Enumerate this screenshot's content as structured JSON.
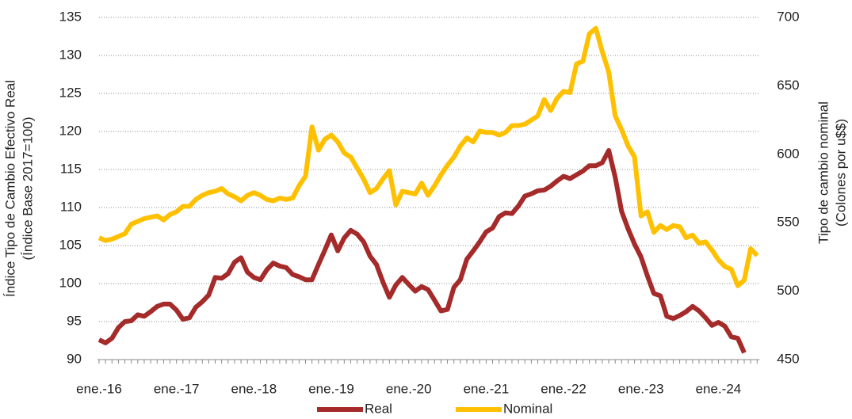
{
  "chart_data": {
    "type": "line",
    "y_label": [
      "Índice Tipo de Cambio Efectivo Real",
      "(Índice Base 2017=100)"
    ],
    "y2_label": [
      "Tipo de cambio nominal",
      "(Colones por u$$)"
    ],
    "categories": [
      "ene.-16",
      null,
      null,
      null,
      null,
      null,
      null,
      null,
      null,
      null,
      null,
      null,
      "ene.-17",
      null,
      null,
      null,
      null,
      null,
      null,
      null,
      null,
      null,
      null,
      null,
      "ene.-18",
      null,
      null,
      null,
      null,
      null,
      null,
      null,
      null,
      null,
      null,
      null,
      "ene.-19",
      null,
      null,
      null,
      null,
      null,
      null,
      null,
      null,
      null,
      null,
      null,
      "ene.-20",
      null,
      null,
      null,
      null,
      null,
      null,
      null,
      null,
      null,
      null,
      null,
      "ene.-21",
      null,
      null,
      null,
      null,
      null,
      null,
      null,
      null,
      null,
      null,
      null,
      "ene.-22",
      null,
      null,
      null,
      null,
      null,
      null,
      null,
      null,
      null,
      null,
      null,
      "ene.-23",
      null,
      null,
      null,
      null,
      null,
      null,
      null,
      null,
      null,
      null,
      null,
      "ene.-24",
      null,
      null,
      null,
      null,
      null,
      null
    ],
    "series": [
      {
        "name": "Real",
        "color": "#a52a2a",
        "axis": "y",
        "values": [
          92.6,
          92.2,
          92.8,
          94.2,
          95.0,
          95.1,
          95.9,
          95.7,
          96.3,
          97.0,
          97.3,
          97.3,
          96.5,
          95.3,
          95.5,
          96.9,
          97.6,
          98.5,
          100.8,
          100.7,
          101.3,
          102.8,
          103.4,
          101.5,
          100.8,
          100.5,
          101.8,
          102.7,
          102.3,
          102.1,
          101.2,
          100.9,
          100.5,
          100.5,
          102.5,
          104.4,
          106.4,
          104.3,
          106.0,
          107.0,
          106.5,
          105.5,
          103.6,
          102.5,
          100.2,
          98.2,
          99.8,
          100.8,
          99.9,
          99.0,
          99.6,
          99.2,
          97.8,
          96.4,
          96.6,
          99.5,
          100.5,
          103.2,
          104.3,
          105.5,
          106.8,
          107.3,
          108.8,
          109.3,
          109.2,
          110.2,
          111.5,
          111.8,
          112.2,
          112.3,
          112.8,
          113.5,
          114.1,
          113.8,
          114.3,
          114.8,
          115.5,
          115.5,
          115.9,
          117.5,
          114.0,
          109.5,
          107.2,
          105.2,
          103.5,
          101.0,
          98.7,
          98.4,
          95.7,
          95.4,
          95.8,
          96.3,
          97.0,
          96.4,
          95.5,
          94.5,
          94.9,
          94.4,
          93.0,
          92.8,
          90.9,
          null,
          null
        ]
      },
      {
        "name": "Nominal",
        "color": "#ffc000",
        "axis": "y2",
        "values": [
          539,
          537,
          538,
          540,
          542,
          549,
          551,
          553,
          554,
          555,
          552,
          556,
          558,
          562,
          562,
          567,
          570,
          572,
          573,
          575,
          571,
          569,
          566,
          570,
          572,
          570,
          567,
          566,
          568,
          567,
          568,
          577,
          584,
          620,
          603,
          611,
          614,
          609,
          601,
          598,
          590,
          582,
          572,
          575,
          582,
          588,
          563,
          573,
          572,
          571,
          579,
          570,
          577,
          585,
          592,
          598,
          606,
          612,
          609,
          617,
          616,
          616,
          614,
          616,
          621,
          621,
          622,
          625,
          628,
          640,
          632,
          641,
          646,
          645,
          666,
          668,
          688,
          692,
          675,
          660,
          628,
          618,
          606,
          598,
          555,
          558,
          543,
          548,
          545,
          548,
          547,
          539,
          541,
          535,
          536,
          530,
          523,
          518,
          516,
          504,
          508,
          531,
          526
        ]
      }
    ],
    "ylim": [
      90,
      135
    ],
    "yticks": [
      90,
      95,
      100,
      105,
      110,
      115,
      120,
      125,
      130,
      135
    ],
    "y2lim": [
      450,
      700
    ],
    "y2ticks": [
      450,
      500,
      550,
      600,
      650,
      700
    ],
    "grid": true,
    "legend": "bottom"
  }
}
